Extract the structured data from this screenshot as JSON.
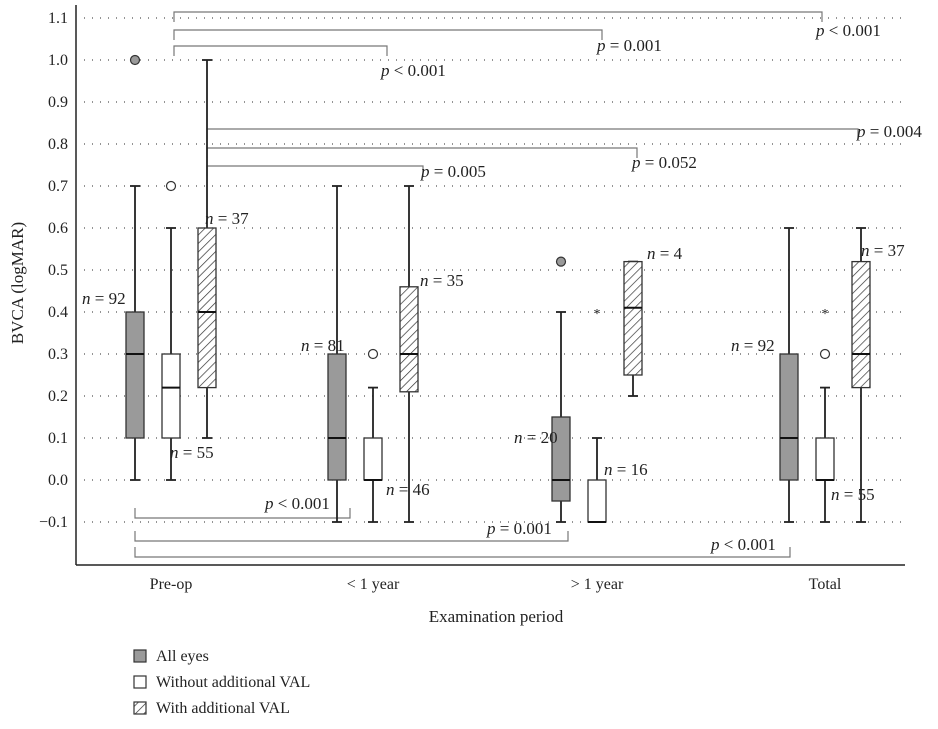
{
  "chart_data": {
    "type": "boxplot",
    "xlabel": "Examination period",
    "ylabel": "BVCA (logMAR)",
    "ylim": [
      -0.1,
      1.1
    ],
    "yticks": [
      -0.1,
      0.0,
      0.1,
      0.2,
      0.3,
      0.4,
      0.5,
      0.6,
      0.7,
      0.8,
      0.9,
      1.0,
      1.1
    ],
    "ytick_labels": [
      "−0.1",
      "0.0",
      "0.1",
      "0.2",
      "0.3",
      "0.4",
      "0.5",
      "0.6",
      "0.7",
      "0.8",
      "0.9",
      "1.0",
      "1.1"
    ],
    "grid": true,
    "categories": [
      "Pre-op",
      "< 1 year",
      "> 1 year",
      "Total"
    ],
    "series": [
      {
        "name": "All eyes",
        "fill": "#9a9a9a",
        "pattern": "solid",
        "boxes": [
          {
            "category": "Pre-op",
            "whisker_low": 0.0,
            "q1": 0.1,
            "median": 0.3,
            "q3": 0.4,
            "whisker_high": 0.7,
            "outliers": [
              {
                "value": 1.0,
                "kind": "circle-filled"
              }
            ],
            "n": "n = 92"
          },
          {
            "category": "< 1 year",
            "whisker_low": -0.1,
            "q1": 0.0,
            "median": 0.1,
            "q3": 0.3,
            "whisker_high": 0.7,
            "outliers": [],
            "n": "n = 81"
          },
          {
            "category": "> 1 year",
            "whisker_low": -0.1,
            "q1": -0.05,
            "median": 0.0,
            "q3": 0.15,
            "whisker_high": 0.4,
            "outliers": [
              {
                "value": 0.52,
                "kind": "circle-filled"
              }
            ],
            "n": "n = 20"
          },
          {
            "category": "Total",
            "whisker_low": -0.1,
            "q1": 0.0,
            "median": 0.1,
            "q3": 0.3,
            "whisker_high": 0.6,
            "outliers": [],
            "n": "n = 92"
          }
        ]
      },
      {
        "name": "Without additional VAL",
        "fill": "#ffffff",
        "pattern": "solid",
        "boxes": [
          {
            "category": "Pre-op",
            "whisker_low": 0.0,
            "q1": 0.1,
            "median": 0.22,
            "q3": 0.3,
            "whisker_high": 0.6,
            "outliers": [
              {
                "value": 0.7,
                "kind": "circle-open"
              }
            ],
            "n": "n = 55"
          },
          {
            "category": "< 1 year",
            "whisker_low": -0.1,
            "q1": 0.0,
            "median": 0.0,
            "q3": 0.1,
            "whisker_high": 0.22,
            "outliers": [
              {
                "value": 0.3,
                "kind": "circle-open"
              }
            ],
            "n": "n = 46"
          },
          {
            "category": "> 1 year",
            "whisker_low": -0.1,
            "q1": -0.1,
            "median": -0.1,
            "q3": 0.0,
            "whisker_high": 0.1,
            "outliers": [
              {
                "value": 0.4,
                "kind": "star"
              }
            ],
            "n": "n = 16"
          },
          {
            "category": "Total",
            "whisker_low": -0.1,
            "q1": 0.0,
            "median": 0.0,
            "q3": 0.1,
            "whisker_high": 0.22,
            "outliers": [
              {
                "value": 0.3,
                "kind": "circle-open"
              },
              {
                "value": 0.4,
                "kind": "star"
              }
            ],
            "n": "n = 55"
          }
        ]
      },
      {
        "name": "With additional VAL",
        "fill": "#ffffff",
        "pattern": "hatch",
        "boxes": [
          {
            "category": "Pre-op",
            "whisker_low": 0.1,
            "q1": 0.22,
            "median": 0.4,
            "q3": 0.6,
            "whisker_high": 1.0,
            "outliers": [],
            "n": "n = 37"
          },
          {
            "category": "< 1 year",
            "whisker_low": -0.1,
            "q1": 0.21,
            "median": 0.3,
            "q3": 0.46,
            "whisker_high": 0.7,
            "outliers": [],
            "n": "n = 35"
          },
          {
            "category": "> 1 year",
            "whisker_low": 0.2,
            "q1": 0.25,
            "median": 0.41,
            "q3": 0.52,
            "whisker_high": 0.52,
            "outliers": [],
            "n": "n = 4"
          },
          {
            "category": "Total",
            "whisker_low": -0.1,
            "q1": 0.22,
            "median": 0.3,
            "q3": 0.52,
            "whisker_high": 0.6,
            "outliers": [],
            "n": "n = 37"
          }
        ]
      }
    ],
    "comparisons": [
      {
        "from": "Pre-op",
        "to": "Total",
        "series": "Without additional VAL",
        "p": "< 0.001",
        "position": "above"
      },
      {
        "from": "Pre-op",
        "to": "> 1 year",
        "series": "Without additional VAL",
        "p": "= 0.001",
        "position": "above"
      },
      {
        "from": "Pre-op",
        "to": "< 1 year",
        "series": "Without additional VAL",
        "p": "< 0.001",
        "position": "above"
      },
      {
        "from": "Pre-op",
        "to": "Total",
        "series": "With additional VAL",
        "p": "= 0.004",
        "position": "above"
      },
      {
        "from": "Pre-op",
        "to": "> 1 year",
        "series": "With additional VAL",
        "p": "= 0.052",
        "position": "above"
      },
      {
        "from": "Pre-op",
        "to": "< 1 year",
        "series": "With additional VAL",
        "p": "= 0.005",
        "position": "above"
      },
      {
        "from": "Pre-op",
        "to": "< 1 year",
        "series": "All eyes",
        "p": "< 0.001",
        "position": "below"
      },
      {
        "from": "Pre-op",
        "to": "> 1 year",
        "series": "All eyes",
        "p": "= 0.001",
        "position": "below"
      },
      {
        "from": "Pre-op",
        "to": "Total",
        "series": "All eyes",
        "p": "< 0.001",
        "position": "below"
      }
    ],
    "legend": {
      "placement": "bottom-left",
      "items": [
        "All eyes",
        "Without additional VAL",
        "With additional VAL"
      ]
    }
  }
}
